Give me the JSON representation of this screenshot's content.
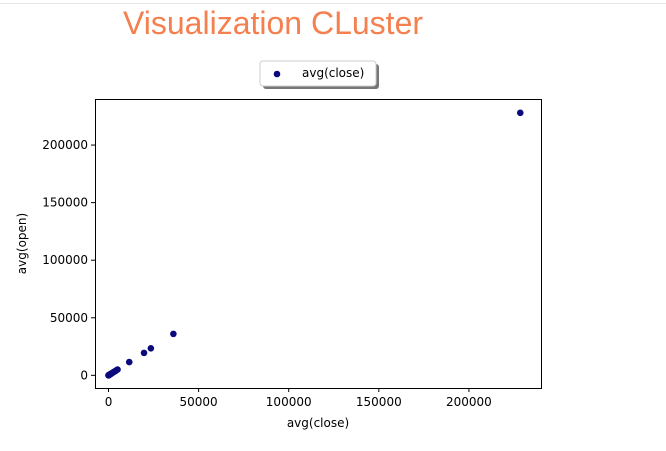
{
  "page": {
    "title": "Visualization CLuster",
    "title_color": "#f4804f"
  },
  "chart_data": {
    "type": "scatter",
    "title": "",
    "xlabel": "avg(close)",
    "ylabel": "avg(open)",
    "xlim": [
      -7500,
      240000
    ],
    "ylim": [
      -11000,
      240000
    ],
    "x_ticks": [
      0,
      50000,
      100000,
      150000,
      200000
    ],
    "x_tick_labels": [
      "0",
      "50000",
      "100000",
      "150000",
      "200000"
    ],
    "y_ticks": [
      0,
      50000,
      100000,
      150000,
      200000
    ],
    "y_tick_labels": [
      "0",
      "50000",
      "100000",
      "150000",
      "200000"
    ],
    "grid": false,
    "legend_position": "top-center-outside",
    "series": [
      {
        "name": "avg(close)",
        "color": "#0a0a7d",
        "marker": "circle",
        "x": [
          5,
          30,
          80,
          150,
          250,
          400,
          600,
          900,
          1200,
          1600,
          2000,
          2600,
          3200,
          4000,
          5000,
          11500,
          19700,
          23500,
          36000,
          228500
        ],
        "y": [
          5,
          30,
          80,
          150,
          250,
          400,
          600,
          900,
          1200,
          1600,
          2000,
          2600,
          3200,
          4000,
          5000,
          11500,
          19500,
          23500,
          36000,
          228000
        ]
      }
    ]
  }
}
